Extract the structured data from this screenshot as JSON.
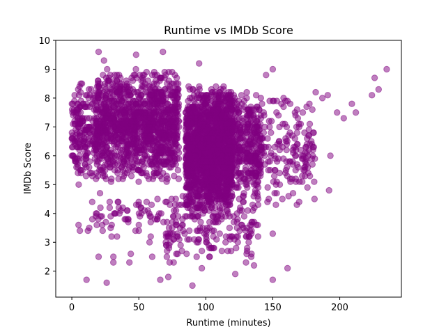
{
  "chart_data": {
    "type": "scatter",
    "title": "Runtime vs IMDb Score",
    "xlabel": "Runtime (minutes)",
    "ylabel": "IMDb Score",
    "xlim": [
      -12,
      246
    ],
    "ylim": [
      1.1,
      10
    ],
    "xticks": [
      0,
      50,
      100,
      150,
      200
    ],
    "yticks": [
      2,
      3,
      4,
      5,
      6,
      7,
      8,
      9,
      10
    ],
    "grid": false,
    "marker_color": "#800080",
    "marker_alpha": 0.5,
    "outliers": [
      {
        "x": 11,
        "y": 1.7
      },
      {
        "x": 26,
        "y": 1.6
      },
      {
        "x": 90,
        "y": 1.5
      },
      {
        "x": 150,
        "y": 1.7
      },
      {
        "x": 161,
        "y": 2.1
      },
      {
        "x": 136,
        "y": 2.2
      },
      {
        "x": 130,
        "y": 2.3
      },
      {
        "x": 122,
        "y": 1.9
      },
      {
        "x": 97,
        "y": 2.1
      },
      {
        "x": 66,
        "y": 1.7
      },
      {
        "x": 72,
        "y": 1.8
      },
      {
        "x": 20,
        "y": 2.5
      },
      {
        "x": 31,
        "y": 2.5
      },
      {
        "x": 44,
        "y": 2.6
      },
      {
        "x": 60,
        "y": 2.5
      },
      {
        "x": 43,
        "y": 2.3
      },
      {
        "x": 31,
        "y": 2.3
      },
      {
        "x": 73,
        "y": 2.3
      },
      {
        "x": 76,
        "y": 2.3
      },
      {
        "x": 5,
        "y": 3.6
      },
      {
        "x": 6,
        "y": 3.4
      },
      {
        "x": 12,
        "y": 3.4
      },
      {
        "x": 13,
        "y": 3.5
      },
      {
        "x": 23,
        "y": 3.4
      },
      {
        "x": 29,
        "y": 3.5
      },
      {
        "x": 58,
        "y": 3.0
      },
      {
        "x": 139,
        "y": 3.2
      },
      {
        "x": 150,
        "y": 3.3
      },
      {
        "x": 192,
        "y": 4.8
      },
      {
        "x": 193,
        "y": 6.0
      },
      {
        "x": 198,
        "y": 7.5
      },
      {
        "x": 203,
        "y": 7.3
      },
      {
        "x": 209,
        "y": 7.8
      },
      {
        "x": 212,
        "y": 7.5
      },
      {
        "x": 224,
        "y": 8.1
      },
      {
        "x": 226,
        "y": 8.7
      },
      {
        "x": 229,
        "y": 8.3
      },
      {
        "x": 235,
        "y": 9.0
      },
      {
        "x": 20,
        "y": 9.6
      },
      {
        "x": 68,
        "y": 9.6
      },
      {
        "x": 95,
        "y": 9.2
      },
      {
        "x": 48,
        "y": 9.5
      },
      {
        "x": 24,
        "y": 9.3
      },
      {
        "x": 150,
        "y": 9.0
      },
      {
        "x": 145,
        "y": 8.8
      },
      {
        "x": 187,
        "y": 8.0
      },
      {
        "x": 191,
        "y": 8.1
      },
      {
        "x": 182,
        "y": 8.2
      },
      {
        "x": 175,
        "y": 6.3
      },
      {
        "x": 168,
        "y": 4.3
      },
      {
        "x": 172,
        "y": 5.1
      },
      {
        "x": 180,
        "y": 6.3
      }
    ],
    "clusters": [
      {
        "n": 1300,
        "x_range": [
          18,
          80
        ],
        "y_range": [
          5.0,
          9.1
        ]
      },
      {
        "n": 1500,
        "x_range": [
          85,
          120
        ],
        "y_range": [
          3.8,
          8.5
        ]
      },
      {
        "n": 650,
        "x_range": [
          100,
          142
        ],
        "y_range": [
          4.2,
          8.5
        ]
      },
      {
        "n": 220,
        "x_range": [
          0,
          20
        ],
        "y_range": [
          4.8,
          8.8
        ]
      },
      {
        "n": 200,
        "x_range": [
          130,
          182
        ],
        "y_range": [
          4.2,
          8.5
        ]
      },
      {
        "n": 160,
        "x_range": [
          15,
          140
        ],
        "y_range": [
          3.0,
          4.8
        ]
      },
      {
        "n": 90,
        "x_range": [
          70,
          135
        ],
        "y_range": [
          2.4,
          3.8
        ]
      }
    ]
  }
}
